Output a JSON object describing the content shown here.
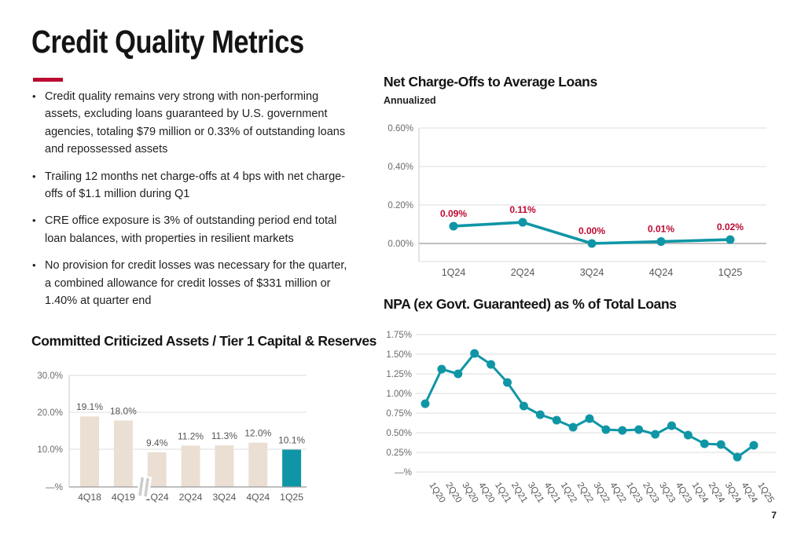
{
  "header": {
    "title": "Credit Quality Metrics"
  },
  "bullets": [
    "Credit quality remains very strong with non-performing assets, excluding loans guaranteed by U.S. government agencies, totaling $79 million or 0.33% of outstanding loans and repossessed assets",
    "Trailing 12 months net charge-offs at 4 bps with net charge-offs of $1.1 million during Q1",
    "CRE office exposure is 3% of outstanding period end total loan balances, with properties in resilient markets",
    "No provision for credit losses was necessary for the quarter, a combined allowance for credit losses of $331 million or 1.40% at quarter end"
  ],
  "page": {
    "number": "7"
  },
  "colors": {
    "accent_red": "#BC0930",
    "teal": "#0F96A6",
    "beige": "#EBDFD3",
    "grid_light": "#DEDEDE",
    "grid_dark": "#9A9A9A",
    "axis_line": "#C9C9C9",
    "tick_text": "#6B6B6B",
    "cat_text": "#565656",
    "value_text": "#555555"
  },
  "chart_data": [
    {
      "id": "nco",
      "type": "line",
      "title": "Net Charge-Offs to Average Loans",
      "subtitle": "Annualized",
      "categories": [
        "1Q24",
        "2Q24",
        "3Q24",
        "4Q24",
        "1Q25"
      ],
      "values": [
        0.09,
        0.11,
        0.0,
        0.01,
        0.02
      ],
      "data_labels": [
        "0.09%",
        "0.11%",
        "0.00%",
        "0.01%",
        "0.02%"
      ],
      "y_ticks": [
        "0.60%",
        "0.40%",
        "0.20%",
        "0.00%"
      ],
      "ylim": [
        -0.1,
        0.6
      ],
      "ylabel": "",
      "xlabel": "",
      "grid": true,
      "legend": "none"
    },
    {
      "id": "npa",
      "type": "line",
      "title": "NPA (ex Govt. Guaranteed) as % of Total Loans",
      "subtitle": "",
      "categories": [
        "1Q20",
        "2Q20",
        "3Q20",
        "4Q20",
        "1Q21",
        "2Q21",
        "3Q21",
        "4Q21",
        "1Q22",
        "2Q22",
        "3Q22",
        "4Q22",
        "1Q23",
        "2Q23",
        "3Q23",
        "4Q23",
        "1Q24",
        "2Q24",
        "3Q24",
        "4Q24",
        "1Q25"
      ],
      "values": [
        0.87,
        1.31,
        1.25,
        1.51,
        1.37,
        1.14,
        0.84,
        0.73,
        0.66,
        0.57,
        0.68,
        0.54,
        0.53,
        0.54,
        0.48,
        0.59,
        0.47,
        0.36,
        0.35,
        0.19,
        0.34
      ],
      "y_ticks": [
        "1.75%",
        "1.50%",
        "1.25%",
        "1.00%",
        "0.75%",
        "0.50%",
        "0.25%",
        "—%"
      ],
      "ylim": [
        0,
        1.75
      ],
      "ylabel": "",
      "xlabel": "",
      "grid": true,
      "legend": "none"
    },
    {
      "id": "criticized-assets",
      "type": "bar",
      "title": "Committed Criticized Assets / Tier 1 Capital & Reserves",
      "subtitle": "",
      "categories": [
        "4Q18",
        "4Q19",
        "1Q24",
        "2Q24",
        "3Q24",
        "4Q24",
        "1Q25"
      ],
      "values": [
        19.1,
        18.0,
        9.4,
        11.2,
        11.3,
        12.0,
        10.1
      ],
      "data_labels": [
        "19.1%",
        "18.0%",
        "9.4%",
        "11.2%",
        "11.3%",
        "12.0%",
        "10.1%"
      ],
      "y_ticks": [
        "30.0%",
        "20.0%",
        "10.0%",
        "—%"
      ],
      "ylim": [
        0,
        30
      ],
      "ylabel": "",
      "xlabel": "",
      "grid": true,
      "legend": "none",
      "highlight_index": 6,
      "axis_break_after_index": 1
    }
  ]
}
